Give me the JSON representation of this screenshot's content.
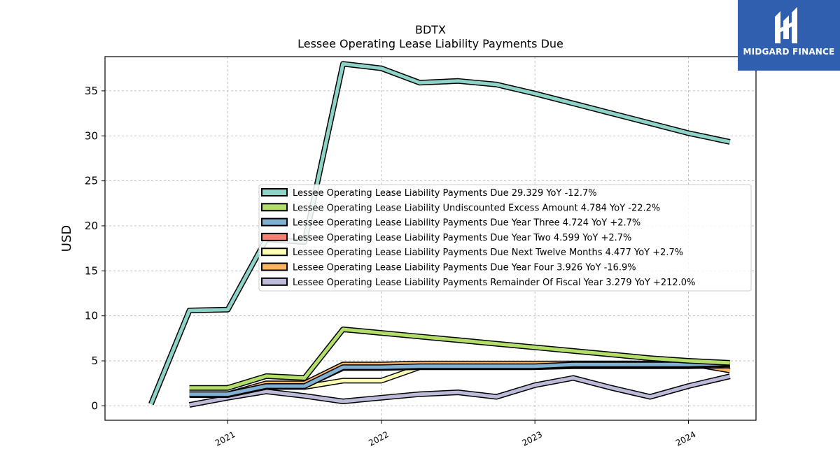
{
  "logo": {
    "text": "MIDGARD FINANCE",
    "color": "#2f5fae"
  },
  "chart_data": {
    "type": "line",
    "title": "BDTX",
    "subtitle": "Lessee Operating Lease Liability Payments Due",
    "ylabel": "USD",
    "xlabel": "",
    "ylim": [
      -1.6,
      38.8
    ],
    "xlim": [
      2020.2,
      2024.44
    ],
    "yticks": [
      0,
      5,
      10,
      15,
      20,
      25,
      30,
      35
    ],
    "xticks": [
      2021,
      2022,
      2023,
      2024
    ],
    "xtick_labels": [
      "2021",
      "2022",
      "2023",
      "2024"
    ],
    "grid": true,
    "legend_position": "center-right",
    "series": [
      {
        "name": "Lessee Operating Lease Liability Payments Due",
        "legend": "Lessee Operating Lease Liability Payments Due  29.329 YoY -12.7%",
        "color": "#8dd3c7",
        "x": [
          2020.5,
          2020.75,
          2021.0,
          2021.25,
          2021.5,
          2021.75,
          2022.0,
          2022.25,
          2022.5,
          2022.75,
          2023.0,
          2023.25,
          2023.5,
          2023.75,
          2024.0,
          2024.27
        ],
        "y": [
          0.2,
          10.6,
          10.7,
          18.5,
          18.2,
          38.0,
          37.5,
          35.9,
          36.1,
          35.7,
          34.7,
          33.6,
          32.5,
          31.4,
          30.3,
          29.33
        ]
      },
      {
        "name": "Lessee Operating Lease Liability Undiscounted Excess Amount",
        "legend": "Lessee Operating Lease Liability Undiscounted Excess Amount  4.784 YoY -22.2%",
        "color": "#b3de69",
        "x": [
          2020.75,
          2021.0,
          2021.25,
          2021.5,
          2021.75,
          2022.0,
          2022.25,
          2022.5,
          2022.75,
          2023.0,
          2023.25,
          2023.5,
          2023.75,
          2024.0,
          2024.27
        ],
        "y": [
          2.0,
          2.0,
          3.3,
          3.1,
          8.5,
          8.1,
          7.7,
          7.3,
          6.9,
          6.5,
          6.1,
          5.7,
          5.3,
          5.0,
          4.78
        ]
      },
      {
        "name": "Lessee Operating Lease Liability Payments Due Year Three",
        "legend": "Lessee Operating Lease Liability Payments Due Year Three  4.724 YoY +2.7%",
        "color": "#80b1d3",
        "x": [
          2020.75,
          2021.0,
          2021.25,
          2021.5,
          2021.75,
          2022.0,
          2022.25,
          2022.5,
          2022.75,
          2023.0,
          2023.25,
          2023.5,
          2023.75,
          2024.0,
          2024.27
        ],
        "y": [
          1.3,
          1.3,
          2.2,
          2.2,
          4.3,
          4.3,
          4.4,
          4.4,
          4.4,
          4.4,
          4.6,
          4.6,
          4.6,
          4.6,
          4.72
        ]
      },
      {
        "name": "Lessee Operating Lease Liability Payments Due Year Two",
        "legend": "Lessee Operating Lease Liability Payments Due Year Two  4.599 YoY +2.7%",
        "color": "#fb8072",
        "x": [
          2020.75,
          2021.0,
          2021.25,
          2021.5,
          2021.75,
          2022.0,
          2022.25,
          2022.5,
          2022.75,
          2023.0,
          2023.25,
          2023.5,
          2023.75,
          2024.0,
          2024.27
        ],
        "y": [
          1.3,
          1.3,
          2.2,
          2.2,
          4.2,
          4.2,
          4.3,
          4.3,
          4.3,
          4.3,
          4.5,
          4.5,
          4.5,
          4.5,
          4.6
        ]
      },
      {
        "name": "Lessee Operating Lease Liability Payments Due Next Twelve Months",
        "legend": "Lessee Operating Lease Liability Payments Due Next Twelve Months  4.477 YoY +2.7%",
        "color": "#ffffb3",
        "x": [
          2020.75,
          2021.0,
          2021.25,
          2021.5,
          2021.75,
          2022.0,
          2022.25,
          2022.5,
          2022.75,
          2023.0,
          2023.25,
          2023.5,
          2023.75,
          2024.0,
          2024.27
        ],
        "y": [
          1.2,
          1.2,
          2.1,
          2.1,
          2.8,
          2.8,
          4.3,
          4.3,
          4.3,
          4.3,
          4.4,
          4.4,
          4.4,
          4.4,
          4.48
        ]
      },
      {
        "name": "Lessee Operating Lease Liability Payments Due Year Four",
        "legend": "Lessee Operating Lease Liability Payments Due Year Four  3.926 YoY -16.9%",
        "color": "#fdb462",
        "x": [
          2020.75,
          2021.0,
          2021.25,
          2021.5,
          2021.75,
          2022.0,
          2022.25,
          2022.5,
          2022.75,
          2023.0,
          2023.25,
          2023.5,
          2023.75,
          2024.0,
          2024.27
        ],
        "y": [
          1.3,
          1.3,
          2.5,
          2.5,
          4.6,
          4.6,
          4.7,
          4.7,
          4.7,
          4.7,
          4.72,
          4.72,
          4.72,
          4.72,
          3.93
        ]
      },
      {
        "name": "Lessee Operating Lease Liability Payments Remainder Of Fiscal Year",
        "legend": "Lessee Operating Lease Liability Payments Remainder Of Fiscal Year  3.279 YoY +212.0%",
        "color": "#bebada",
        "x": [
          2020.75,
          2021.0,
          2021.25,
          2021.5,
          2021.75,
          2022.0,
          2022.25,
          2022.5,
          2022.75,
          2023.0,
          2023.25,
          2023.5,
          2023.75,
          2024.0,
          2024.27
        ],
        "y": [
          0.1,
          0.9,
          1.6,
          1.1,
          0.5,
          0.9,
          1.3,
          1.5,
          1.0,
          2.3,
          3.1,
          2.0,
          1.0,
          2.2,
          3.28
        ]
      }
    ]
  }
}
